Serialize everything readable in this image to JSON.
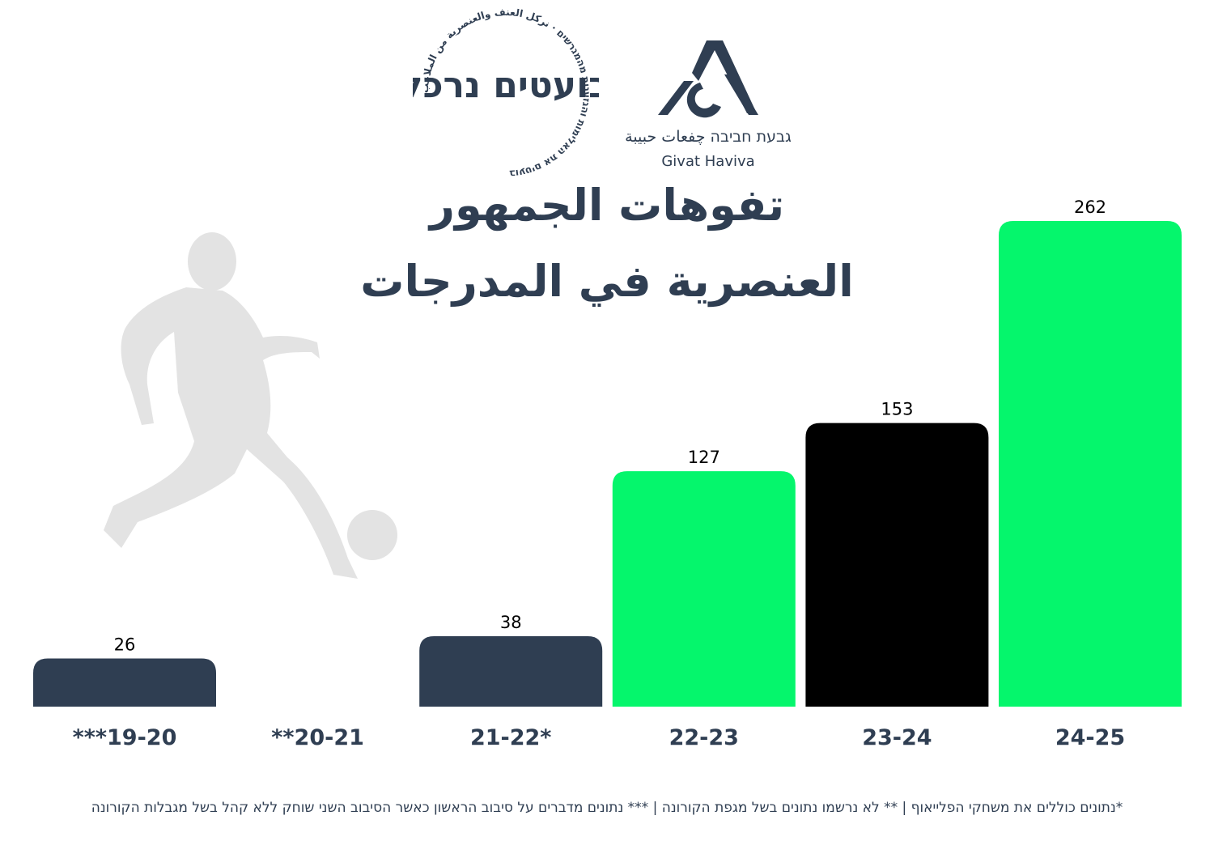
{
  "logos": {
    "kicking_out": {
      "name": "בועטים נרכל",
      "ring_text": "בועטים את האלימות והגזענות מהמגרשים · نركل العنف والعنصرية من الملاعب"
    },
    "givat_haviva": {
      "name_he_ar": "גבעת חביבה  چفعات حبيبة",
      "name_en": "Givat Haviva"
    }
  },
  "chart_data": {
    "type": "bar",
    "title_line1": "تفوهات الجمهور",
    "title_line2": "العنصرية في المدرجات",
    "categories": [
      "***19-20",
      "**20-21",
      "21-22*",
      "22-23",
      "23-24",
      "24-25"
    ],
    "values": [
      26,
      null,
      38,
      127,
      153,
      262
    ],
    "value_labels": [
      "26",
      "",
      "38",
      "127",
      "153",
      "262"
    ],
    "bar_colors": [
      "#2f3e52",
      "#2f3e52",
      "#2f3e52",
      "#05f66c",
      "#000000",
      "#05f66c"
    ],
    "ylim": [
      0,
      262
    ],
    "grid": false,
    "legend": "none",
    "footnote": "*נתונים כוללים את משחקי הפלייאוף  |  ** לא נרשמו נתונים בשל מגפת הקורונה | *** נתונים מדברים על סיבוב הראשון כאשר הסיבוב השני שוחק ללא קהל בשל מגבלות הקורונה"
  },
  "colors": {
    "navy": "#2f3e52",
    "green": "#05f66c",
    "black": "#000000",
    "silhouette": "#e3e3e3"
  },
  "icons": {
    "player": "football-player-silhouette-icon",
    "ball": "football-icon"
  }
}
